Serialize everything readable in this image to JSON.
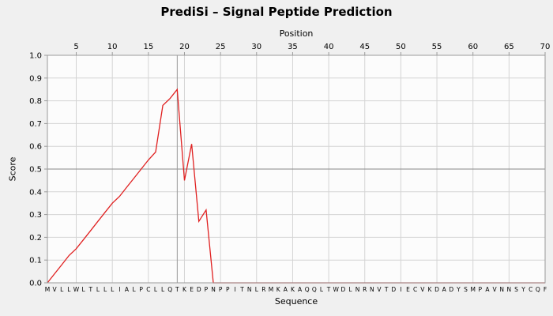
{
  "title": "PrediSi – Signal Peptide Prediction",
  "axes": {
    "top_label": "Position",
    "left_label": "Score",
    "bottom_label": "Sequence"
  },
  "chart_data": {
    "type": "line",
    "title": "PrediSi – Signal Peptide Prediction",
    "xlabel": "Position",
    "ylabel": "Score",
    "xlabel_bottom": "Sequence",
    "xlim": [
      1,
      70
    ],
    "ylim": [
      0,
      1
    ],
    "x_ticks": [
      5,
      10,
      15,
      20,
      25,
      30,
      35,
      40,
      45,
      50,
      55,
      60,
      65,
      70
    ],
    "y_ticks": [
      0.0,
      0.1,
      0.2,
      0.3,
      0.4,
      0.5,
      0.6,
      0.7,
      0.8,
      0.9,
      1.0
    ],
    "grid": true,
    "threshold_y": 0.5,
    "cleavage_position": 19,
    "sequence": "MVLLWLTLLLIALPCLLQTKEDPNPPITNLRMKAKAQQLTWDLNRNVTDIECVKDADYSMPAVNNSYCQF",
    "series": [
      {
        "name": "signal-peptide-score",
        "x": [
          1,
          2,
          3,
          4,
          5,
          6,
          7,
          8,
          9,
          10,
          11,
          12,
          13,
          14,
          15,
          16,
          17,
          18,
          19,
          20,
          21,
          22,
          23,
          24,
          25,
          26,
          27,
          28,
          29,
          30,
          31,
          32,
          33,
          34,
          35,
          36,
          37,
          38,
          39,
          40,
          41,
          42,
          43,
          44,
          45,
          46,
          47,
          48,
          49,
          50,
          51,
          52,
          53,
          54,
          55,
          56,
          57,
          58,
          59,
          60,
          61,
          62,
          63,
          64,
          65,
          66,
          67,
          68,
          69,
          70
        ],
        "y": [
          0,
          0.04,
          0.08,
          0.12,
          0.15,
          0.19,
          0.23,
          0.27,
          0.31,
          0.35,
          0.38,
          0.42,
          0.46,
          0.5,
          0.54,
          0.575,
          0.78,
          0.81,
          0.85,
          0.45,
          0.61,
          0.27,
          0.32,
          0,
          0,
          0,
          0,
          0,
          0,
          0,
          0,
          0,
          0,
          0,
          0,
          0,
          0,
          0,
          0,
          0,
          0,
          0,
          0,
          0,
          0,
          0,
          0,
          0,
          0,
          0,
          0,
          0,
          0,
          0,
          0,
          0,
          0,
          0,
          0,
          0,
          0,
          0,
          0,
          0,
          0,
          0,
          0,
          0,
          0,
          0
        ]
      }
    ],
    "colors": {
      "line": "#e02020",
      "grid": "#d4d4d4",
      "threshold": "#888888",
      "cleavage_line": "#999999",
      "plot_background": "#fcfcfc",
      "plot_border": "#9a9a9a",
      "text": "#000000",
      "page_background": "#f0f0f0"
    }
  }
}
